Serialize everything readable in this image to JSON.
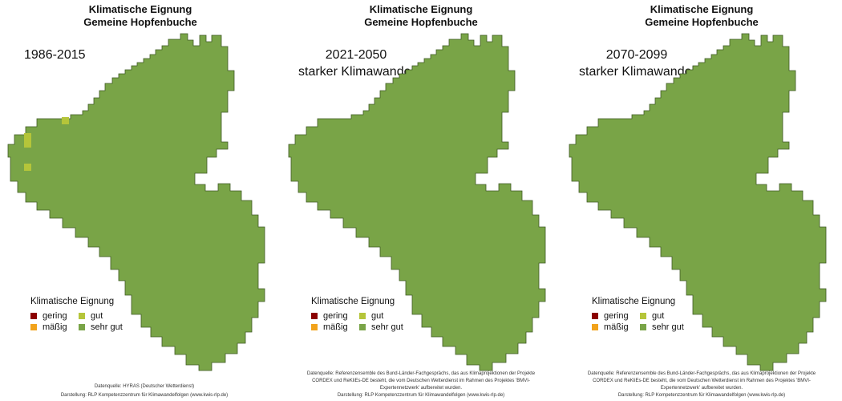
{
  "colors": {
    "gering": "#8b0000",
    "maessig": "#f2a31b",
    "gut": "#b5c53a",
    "sehr_gut": "#79a447",
    "outline": "#3f5a25"
  },
  "panels": [
    {
      "title_line1": "Klimatische Eignung",
      "title_line2": "Gemeine Hopfenbuche",
      "period": "1986-2015",
      "scenario": "",
      "legend": {
        "title": "Klimatische Eignung",
        "items": [
          {
            "label": "gering"
          },
          {
            "label": "gut"
          },
          {
            "label": "mäßig"
          },
          {
            "label": "sehr gut"
          }
        ]
      },
      "source": "Datenquelle: HYRAS (Deutscher Wetterdienst)",
      "credit": "Darstellung: RLP Kompetenzzentrum für Klimawandelfolgen (www.kwis-rlp.de)"
    },
    {
      "title_line1": "Klimatische Eignung",
      "title_line2": "Gemeine Hopfenbuche",
      "period": "2021-2050",
      "scenario": "starker Klimawandel",
      "legend": {
        "title": "Klimatische Eignung",
        "items": [
          {
            "label": "gering"
          },
          {
            "label": "gut"
          },
          {
            "label": "mäßig"
          },
          {
            "label": "sehr gut"
          }
        ]
      },
      "source": "Datenquelle: Referenzensemble des Bund-Länder-Fachgesprächs, das aus Klimaprojektionen der Projekte CORDEX und ReKliEs-DE besteht, die vom Deutschen Wetterdienst im Rahmen des Projektes 'BMVI-Expertennetzwerk' aufbereitet wurden.",
      "credit": "Darstellung: RLP Kompetenzzentrum für Klimawandelfolgen (www.kwis-rlp.de)"
    },
    {
      "title_line1": "Klimatische Eignung",
      "title_line2": "Gemeine Hopfenbuche",
      "period": "2070-2099",
      "scenario": "starker Klimawandel",
      "legend": {
        "title": "Klimatische Eignung",
        "items": [
          {
            "label": "gering"
          },
          {
            "label": "gut"
          },
          {
            "label": "mäßig"
          },
          {
            "label": "sehr gut"
          }
        ]
      },
      "source": "Datenquelle: Referenzensemble des Bund-Länder-Fachgesprächs, das aus Klimaprojektionen der Projekte CORDEX und ReKliEs-DE besteht, die vom Deutschen Wetterdienst im Rahmen des Projektes 'BMVI-Expertennetzwerk' aufbereitet wurden.",
      "credit": "Darstellung: RLP Kompetenzzentrum für Klimawandelfolgen (www.kwis-rlp.de)"
    }
  ]
}
